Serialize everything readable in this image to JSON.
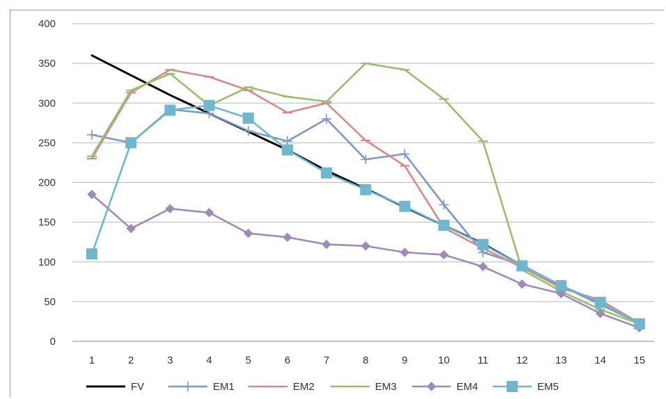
{
  "chart_data": {
    "type": "line",
    "title": "",
    "xlabel": "",
    "ylabel": "",
    "x": [
      1,
      2,
      3,
      4,
      5,
      6,
      7,
      8,
      9,
      10,
      11,
      12,
      13,
      14,
      15
    ],
    "x_tick_labels": [
      "1",
      "2",
      "3",
      "4",
      "5",
      "6",
      "7",
      "8",
      "9",
      "10",
      "11",
      "12",
      "13",
      "14",
      "15"
    ],
    "ylim": [
      0,
      400
    ],
    "y_ticks": [
      0,
      50,
      100,
      150,
      200,
      250,
      300,
      350,
      400
    ],
    "y_tick_labels": [
      "0",
      "50",
      "100",
      "150",
      "200",
      "250",
      "300",
      "350",
      "400"
    ],
    "grid": "horizontal",
    "legend_position": "bottom",
    "series": [
      {
        "name": "FV",
        "color": "#000000",
        "marker": "none",
        "values": [
          360,
          335,
          310,
          287,
          264,
          241,
          215,
          192,
          169,
          146,
          123,
          95,
          70,
          47,
          23
        ]
      },
      {
        "name": "EM1",
        "color": "#8096c8",
        "marker": "plus",
        "values": [
          260,
          250,
          292,
          287,
          265,
          252,
          280,
          229,
          236,
          172,
          112,
          96,
          70,
          47,
          23
        ]
      },
      {
        "name": "EM2",
        "color": "#d88a88",
        "marker": "dash",
        "values": [
          230,
          313,
          342,
          333,
          316,
          288,
          300,
          253,
          221,
          143,
          117,
          93,
          67,
          52,
          23
        ]
      },
      {
        "name": "EM3",
        "color": "#9bbd72",
        "marker": "dash",
        "values": [
          233,
          316,
          337,
          297,
          320,
          308,
          302,
          350,
          342,
          305,
          252,
          90,
          63,
          40,
          22
        ]
      },
      {
        "name": "EM4",
        "color": "#9f8ab8",
        "marker": "diamond",
        "values": [
          185,
          142,
          167,
          162,
          136,
          131,
          122,
          120,
          112,
          109,
          94,
          72,
          60,
          35,
          17
        ]
      },
      {
        "name": "EM5",
        "color": "#70b7ce",
        "marker": "square",
        "values": [
          110,
          250,
          291,
          297,
          281,
          241,
          212,
          191,
          170,
          146,
          122,
          95,
          70,
          49,
          22
        ]
      }
    ]
  }
}
